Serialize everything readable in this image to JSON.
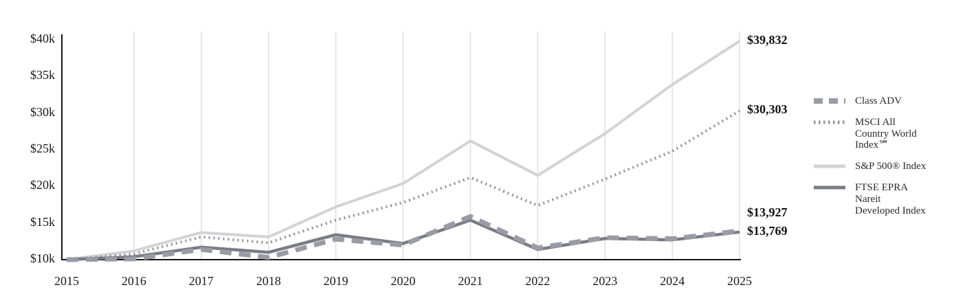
{
  "chart_data": {
    "type": "line",
    "x": [
      2015,
      2016,
      2017,
      2018,
      2019,
      2020,
      2021,
      2022,
      2023,
      2024,
      2025
    ],
    "ylim": [
      10000,
      40000
    ],
    "yticks": [
      {
        "value": 10000,
        "label": "$10k"
      },
      {
        "value": 15000,
        "label": "$15k"
      },
      {
        "value": 20000,
        "label": "$20k"
      },
      {
        "value": 25000,
        "label": "$25k"
      },
      {
        "value": 30000,
        "label": "$30k"
      },
      {
        "value": 35000,
        "label": "$35k"
      },
      {
        "value": 40000,
        "label": "$40k"
      }
    ],
    "grid": "vertical",
    "legend_position": "right",
    "series": [
      {
        "name": "Class ADV",
        "legend_lines": [
          "Class ADV"
        ],
        "values": [
          10000,
          10100,
          11400,
          10300,
          12800,
          12000,
          15900,
          11600,
          13000,
          12850,
          13927
        ],
        "end_label": "$13,927",
        "color": "#9b9ba7",
        "style": "dashed",
        "width": 7,
        "z": 4
      },
      {
        "name": "MSCI All Country World Index℠",
        "legend_lines": [
          "MSCI All",
          "Country World",
          "Index℠"
        ],
        "values": [
          10000,
          10800,
          13100,
          12300,
          15400,
          17800,
          21200,
          17400,
          21000,
          24800,
          30303
        ],
        "end_label": "$30,303",
        "color": "#8f8f99",
        "style": "dotted",
        "width": 4,
        "z": 2
      },
      {
        "name": "S&P 500® Index",
        "legend_lines": [
          "S&P 500® Index"
        ],
        "values": [
          10000,
          11200,
          13700,
          13100,
          17200,
          20400,
          26200,
          21500,
          27200,
          33900,
          39832
        ],
        "end_label": "$39,832",
        "color": "#d2d2d7",
        "style": "solid",
        "width": 4,
        "z": 1
      },
      {
        "name": "FTSE EPRA Nareit Developed Index",
        "legend_lines": [
          "FTSE EPRA",
          "Nareit",
          "Developed Index"
        ],
        "values": [
          10000,
          10400,
          11700,
          11000,
          13400,
          12200,
          15400,
          11400,
          12900,
          12700,
          13769
        ],
        "end_label": "$13,769",
        "color": "#7b7b85",
        "style": "solid",
        "width": 4.5,
        "z": 3
      }
    ]
  }
}
